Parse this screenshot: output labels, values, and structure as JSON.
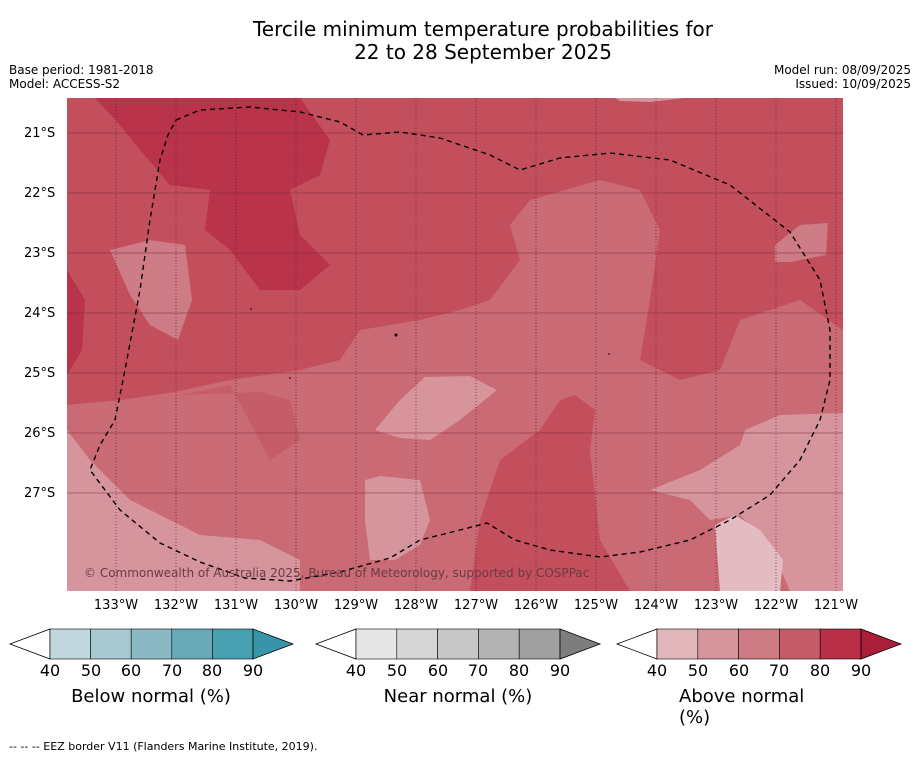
{
  "title_line1": "Tercile minimum temperature probabilities for",
  "title_line2": "22 to 28 September 2025",
  "base_period": "Base period: 1981-2018",
  "model": "Model: ACCESS-S2",
  "model_run": "Model run: 08/09/2025",
  "issued": "Issued: 10/09/2025",
  "copyright": "© Commonwealth of Australia 2025, Bureau of Meteorology, supported by COSPPac",
  "lat_labels": [
    "21°S",
    "22°S",
    "23°S",
    "24°S",
    "25°S",
    "26°S",
    "27°S"
  ],
  "lon_labels": [
    "133°W",
    "132°W",
    "131°W",
    "130°W",
    "129°W",
    "128°W",
    "127°W",
    "126°W",
    "125°W",
    "124°W",
    "123°W",
    "122°W",
    "121°W"
  ],
  "colorbars": [
    {
      "label": "Below normal (%)",
      "ticks": [
        "40",
        "50",
        "60",
        "70",
        "80",
        "90"
      ],
      "colors": [
        "#c0d6dd",
        "#a8c8cf",
        "#8ab9c4",
        "#6aa9b8",
        "#48a0b0",
        "#3895a8"
      ]
    },
    {
      "label": "Near normal (%)",
      "ticks": [
        "40",
        "50",
        "60",
        "70",
        "80",
        "90"
      ],
      "colors": [
        "#e5e5e5",
        "#d6d6d6",
        "#c7c7c7",
        "#b3b3b3",
        "#a0a0a0",
        "#7d7d7d"
      ]
    },
    {
      "label": "Above normal (%)",
      "ticks": [
        "40",
        "50",
        "60",
        "70",
        "80",
        "90"
      ],
      "colors": [
        "#e2b7bc",
        "#d6959c",
        "#cd7b84",
        "#c55d69",
        "#b92f48",
        "#aa1e3c"
      ]
    }
  ],
  "footer": "--  --  -- EEZ border V11 (Flanders Marine Institute, 2019)."
}
